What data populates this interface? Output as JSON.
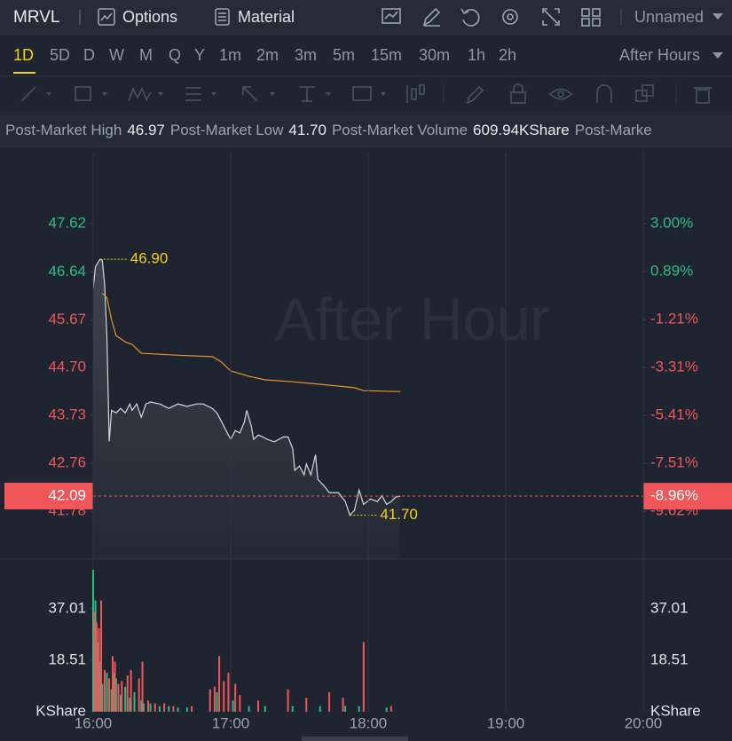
{
  "toolbar": {
    "symbol": "MRVL",
    "options": "Options",
    "material": "Material",
    "layout": "Unnamed"
  },
  "periods": [
    "1D",
    "5D",
    "D",
    "W",
    "M",
    "Q",
    "Y",
    "1m",
    "2m",
    "3m",
    "5m",
    "15m",
    "30m",
    "1h",
    "2h"
  ],
  "session": "After Hours",
  "stats": [
    {
      "label": "Post-Market High",
      "value": "46.97"
    },
    {
      "label": "Post-Market Low",
      "value": "41.70"
    },
    {
      "label": "Post-Market Volume",
      "value": "609.94KShare"
    },
    {
      "label": "Post-Marke"
    }
  ],
  "chart_data": [
    {
      "type": "line",
      "watermark": "After Hour",
      "area": true,
      "up_color": "#2dbd85",
      "down_color": "#f0565a",
      "annotation_color": "#f2d21b",
      "xlim": [
        960,
        1200
      ],
      "ylim": [
        40.81,
        49.1
      ],
      "y2lim": [
        -11.72,
        6.19
      ],
      "yticks": [
        47.62,
        46.64,
        45.67,
        {
          "value": 44.7,
          "label": "44.70"
        },
        43.73,
        42.76,
        41.78
      ],
      "y2ticks": [
        {
          "value": 3,
          "label": "3.00%"
        },
        {
          "value": 0.89,
          "label": "0.89%"
        },
        {
          "value": -1.21,
          "label": "-1.21%"
        },
        {
          "value": -3.31,
          "label": "-3.31%"
        },
        {
          "value": -5.41,
          "label": "-5.41%"
        },
        {
          "value": -7.51,
          "label": "-7.51%"
        },
        {
          "value": -9.62,
          "label": "-9.62%"
        }
      ],
      "series": [
        {
          "color": "#d5d8dd",
          "x": [
            960,
            961,
            963,
            964,
            965,
            966,
            967,
            968,
            970,
            972,
            974,
            976,
            977,
            979,
            981,
            983,
            985,
            989,
            993,
            997,
            1001,
            1005,
            1008,
            1012,
            1014,
            1016,
            1018,
            1020,
            1022,
            1024,
            1026,
            1027,
            1029,
            1030,
            1032,
            1034,
            1036,
            1039,
            1043,
            1045,
            1047,
            1048,
            1050,
            1052,
            1053,
            1055,
            1057,
            1058,
            1061,
            1063,
            1067,
            1070,
            1072,
            1074,
            1076,
            1078,
            1081,
            1084,
            1086,
            1088,
            1090,
            1092,
            1094
          ],
          "values": [
            46.3,
            46.75,
            46.9,
            46.88,
            46.39,
            45.31,
            43.2,
            43.83,
            43.78,
            43.87,
            43.78,
            43.96,
            43.83,
            43.96,
            43.69,
            43.96,
            44.0,
            43.96,
            43.87,
            43.96,
            43.91,
            43.96,
            43.96,
            43.87,
            43.78,
            43.6,
            43.42,
            43.24,
            43.42,
            43.37,
            43.6,
            43.83,
            43.51,
            43.24,
            43.33,
            43.29,
            43.24,
            43.19,
            43.29,
            43.29,
            43.06,
            42.61,
            42.7,
            42.52,
            42.74,
            42.52,
            42.93,
            42.43,
            42.28,
            42.16,
            42.16,
            41.98,
            41.7,
            41.8,
            42.21,
            41.92,
            42.03,
            41.98,
            42.1,
            41.92,
            41.98,
            42.07,
            42.09
          ]
        },
        {
          "color": "#e8922e",
          "x": [
            964,
            966,
            968,
            970,
            974,
            977,
            981,
            997,
            1012,
            1016,
            1020,
            1028,
            1035,
            1047,
            1059,
            1074,
            1078,
            1094
          ],
          "values": [
            46.21,
            46.12,
            45.67,
            45.35,
            45.22,
            45.17,
            44.99,
            44.95,
            44.92,
            44.81,
            44.63,
            44.52,
            44.45,
            44.41,
            44.36,
            44.29,
            44.23,
            44.21
          ]
        }
      ],
      "annotations": [
        {
          "x": 963,
          "value": 46.9,
          "label": "46.90"
        },
        {
          "x": 1072,
          "value": 41.7,
          "label": "41.70"
        }
      ],
      "last": {
        "value": 42.09,
        "change": {
          "value": -8.96,
          "label": "-8.96%"
        }
      }
    },
    {
      "type": "bar",
      "xlim": [
        960,
        1200
      ],
      "ylim": [
        0,
        53.27
      ],
      "xticks": [
        {
          "value": 960,
          "label": "16:00"
        },
        {
          "value": 1020,
          "label": "17:00"
        },
        {
          "value": 1080,
          "label": "18:00"
        },
        {
          "value": 1140,
          "label": "19:00"
        },
        {
          "value": 1200,
          "label": "20:00"
        }
      ],
      "yticks": [
        {
          "value": 0,
          "label": "KShare"
        },
        18.51,
        37.01
      ],
      "series": [
        {
          "color": "#2dbd85",
          "x": [
            960,
            961,
            962,
            963,
            964,
            966,
            968,
            969,
            970,
            972,
            974,
            976,
            978,
            981,
            982,
            985,
            989,
            993,
            997,
            1001,
            1014,
            1021,
            1028,
            1035,
            1047,
            1059,
            1070,
            1076,
            1088
          ],
          "values": [
            51,
            40,
            25,
            18,
            10,
            14,
            8,
            14,
            12,
            6,
            9,
            5,
            7,
            4,
            3,
            3,
            2,
            2,
            1.5,
            1.5,
            7,
            4,
            2,
            2,
            2,
            2,
            2,
            2,
            1.5
          ]
        },
        {
          "color": "#f0565a",
          "x": [
            960.5,
            961.5,
            962.5,
            963.5,
            965,
            967,
            968.5,
            969.5,
            971,
            972.5,
            975,
            976.5,
            980,
            981.5,
            984,
            987,
            991,
            995,
            1003,
            1011,
            1013,
            1015,
            1017,
            1019,
            1022,
            1024,
            1032,
            1045,
            1053,
            1063,
            1069,
            1078,
            1090
          ],
          "values": [
            36,
            32,
            30,
            40,
            15,
            12,
            20,
            18,
            10,
            11,
            13,
            15,
            12,
            18,
            4,
            3,
            3,
            2,
            2,
            8,
            9,
            20,
            11,
            14,
            10,
            6,
            4,
            8,
            5,
            7,
            5,
            25,
            2
          ]
        }
      ]
    }
  ]
}
